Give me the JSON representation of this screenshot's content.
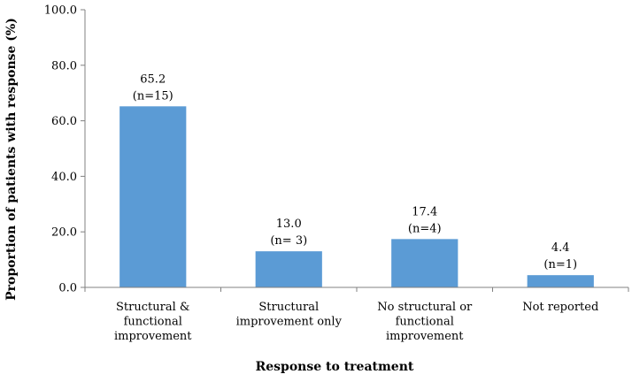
{
  "chart_data": {
    "type": "bar",
    "categories": [
      [
        "Structural &",
        "functional",
        "improvement"
      ],
      [
        "Structural",
        "improvement only"
      ],
      [
        "No structural or",
        "functional",
        "improvement"
      ],
      [
        "Not reported"
      ]
    ],
    "values": [
      65.2,
      13.0,
      17.4,
      4.4
    ],
    "data_labels": [
      [
        "65.2",
        "(n=15)"
      ],
      [
        "13.0",
        "(n= 3)"
      ],
      [
        "17.4",
        "(n=4)"
      ],
      [
        "4.4",
        "(n=1)"
      ]
    ],
    "ylim": [
      0,
      100
    ],
    "yticks": [
      "0.0",
      "20.0",
      "40.0",
      "60.0",
      "80.0",
      "100.0"
    ],
    "xlabel": "Response to treatment",
    "ylabel": "Proportion of patients with response (%)",
    "bar_color": "#5B9BD5",
    "axis_color": "#808080",
    "grid": false,
    "legend": "none"
  }
}
